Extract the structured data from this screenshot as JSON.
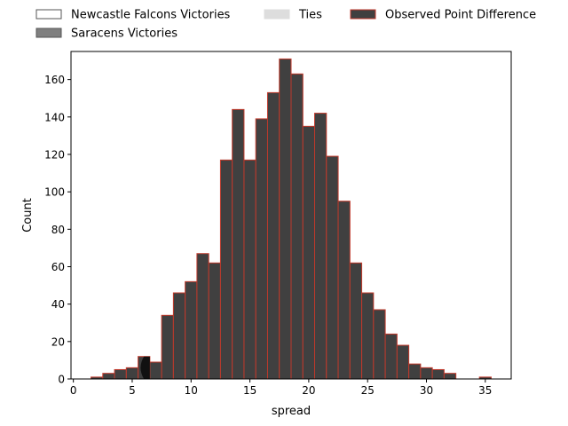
{
  "chart_data": {
    "type": "bar",
    "xlabel": "spread",
    "ylabel": "Count",
    "xlim": [
      -0.2,
      37.2
    ],
    "ylim": [
      0,
      175
    ],
    "xticks": [
      0,
      5,
      10,
      15,
      20,
      25,
      30,
      35
    ],
    "yticks": [
      0,
      20,
      40,
      60,
      80,
      100,
      120,
      140,
      160
    ],
    "grid": false,
    "legend_position": "top",
    "legend": [
      {
        "label": "Newcastle Falcons Victories",
        "fill": "#ffffff",
        "edge": "#555555"
      },
      {
        "label": "Saracens Victories",
        "fill": "#808080",
        "edge": "#555555"
      },
      {
        "label": "Ties",
        "fill": "#dddddd",
        "edge": "#dddddd"
      },
      {
        "label": "Observed Point Difference",
        "fill": "#404040",
        "edge": "#c0392b"
      }
    ],
    "bins": [
      {
        "x0": 1.5,
        "x1": 2.5,
        "count": 1
      },
      {
        "x0": 2.5,
        "x1": 3.5,
        "count": 3
      },
      {
        "x0": 3.5,
        "x1": 4.5,
        "count": 5
      },
      {
        "x0": 4.5,
        "x1": 5.5,
        "count": 6
      },
      {
        "x0": 5.5,
        "x1": 6.5,
        "count": 12
      },
      {
        "x0": 6.5,
        "x1": 7.5,
        "count": 9
      },
      {
        "x0": 7.5,
        "x1": 8.5,
        "count": 34
      },
      {
        "x0": 8.5,
        "x1": 9.5,
        "count": 46
      },
      {
        "x0": 9.5,
        "x1": 10.5,
        "count": 52
      },
      {
        "x0": 10.5,
        "x1": 11.5,
        "count": 67
      },
      {
        "x0": 11.5,
        "x1": 12.5,
        "count": 62
      },
      {
        "x0": 12.5,
        "x1": 13.5,
        "count": 117
      },
      {
        "x0": 13.5,
        "x1": 14.5,
        "count": 144
      },
      {
        "x0": 14.5,
        "x1": 15.5,
        "count": 117
      },
      {
        "x0": 15.5,
        "x1": 16.5,
        "count": 139
      },
      {
        "x0": 16.5,
        "x1": 17.5,
        "count": 153
      },
      {
        "x0": 17.5,
        "x1": 18.5,
        "count": 171
      },
      {
        "x0": 18.5,
        "x1": 19.5,
        "count": 163
      },
      {
        "x0": 19.5,
        "x1": 20.5,
        "count": 135
      },
      {
        "x0": 20.5,
        "x1": 21.5,
        "count": 142
      },
      {
        "x0": 21.5,
        "x1": 22.5,
        "count": 119
      },
      {
        "x0": 22.5,
        "x1": 23.5,
        "count": 95
      },
      {
        "x0": 23.5,
        "x1": 24.5,
        "count": 62
      },
      {
        "x0": 24.5,
        "x1": 25.5,
        "count": 46
      },
      {
        "x0": 25.5,
        "x1": 26.5,
        "count": 37
      },
      {
        "x0": 26.5,
        "x1": 27.5,
        "count": 24
      },
      {
        "x0": 27.5,
        "x1": 28.5,
        "count": 18
      },
      {
        "x0": 28.5,
        "x1": 29.5,
        "count": 8
      },
      {
        "x0": 29.5,
        "x1": 30.5,
        "count": 6
      },
      {
        "x0": 30.5,
        "x1": 31.5,
        "count": 5
      },
      {
        "x0": 31.5,
        "x1": 32.5,
        "count": 3
      },
      {
        "x0": 34.5,
        "x1": 35.5,
        "count": 1
      }
    ],
    "observed_point_difference": 6,
    "colors": {
      "bar_fill": "#404040",
      "bar_edge": "#c0392b",
      "observed_fill": "#111111"
    }
  }
}
